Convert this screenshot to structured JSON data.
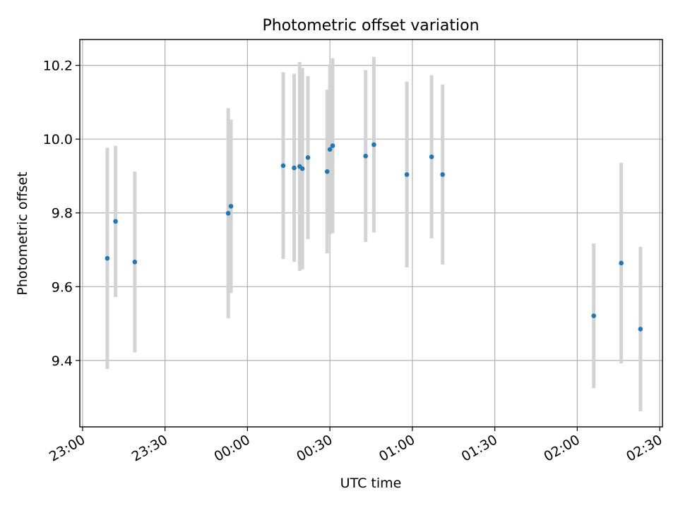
{
  "chart_data": {
    "type": "scatter",
    "title": "Photometric offset variation",
    "xlabel": "UTC time",
    "ylabel": "Photometric offset",
    "x_axis_type": "time",
    "x_ticks": [
      "23:00",
      "23:30",
      "00:00",
      "00:30",
      "01:00",
      "01:30",
      "02:00",
      "02:30"
    ],
    "xlim": [
      "22:59",
      "02:31"
    ],
    "y_ticks": [
      "9.4",
      "9.6",
      "9.8",
      "10.0",
      "10.2"
    ],
    "ylim": [
      9.22,
      10.27
    ],
    "grid": true,
    "colors": {
      "point": "#1f77b4",
      "errorbar": "#d3d3d3",
      "grid": "#b0b0b0"
    },
    "series": [
      {
        "points": [
          {
            "x": "23:09",
            "y": 9.677,
            "y_err": 0.3
          },
          {
            "x": "23:12",
            "y": 9.777,
            "y_err": 0.205
          },
          {
            "x": "23:19",
            "y": 9.667,
            "y_err": 0.245
          },
          {
            "x": "23:53",
            "y": 9.799,
            "y_err": 0.285
          },
          {
            "x": "23:54",
            "y": 9.818,
            "y_err": 0.235
          },
          {
            "x": "00:13",
            "y": 9.928,
            "y_err": 0.253
          },
          {
            "x": "00:17",
            "y": 9.922,
            "y_err": 0.255
          },
          {
            "x": "00:19",
            "y": 9.926,
            "y_err": 0.283
          },
          {
            "x": "00:20",
            "y": 9.92,
            "y_err": 0.273
          },
          {
            "x": "00:22",
            "y": 9.95,
            "y_err": 0.221
          },
          {
            "x": "00:29",
            "y": 9.912,
            "y_err": 0.222
          },
          {
            "x": "00:30",
            "y": 9.972,
            "y_err": 0.23
          },
          {
            "x": "00:31",
            "y": 9.982,
            "y_err": 0.237
          },
          {
            "x": "00:43",
            "y": 9.954,
            "y_err": 0.233
          },
          {
            "x": "00:46",
            "y": 9.985,
            "y_err": 0.238
          },
          {
            "x": "00:58",
            "y": 9.904,
            "y_err": 0.252
          },
          {
            "x": "01:07",
            "y": 9.952,
            "y_err": 0.221
          },
          {
            "x": "01:11",
            "y": 9.904,
            "y_err": 0.244
          },
          {
            "x": "02:06",
            "y": 9.521,
            "y_err": 0.196
          },
          {
            "x": "02:16",
            "y": 9.664,
            "y_err": 0.272
          },
          {
            "x": "02:23",
            "y": 9.485,
            "y_err": 0.223
          }
        ]
      }
    ]
  }
}
